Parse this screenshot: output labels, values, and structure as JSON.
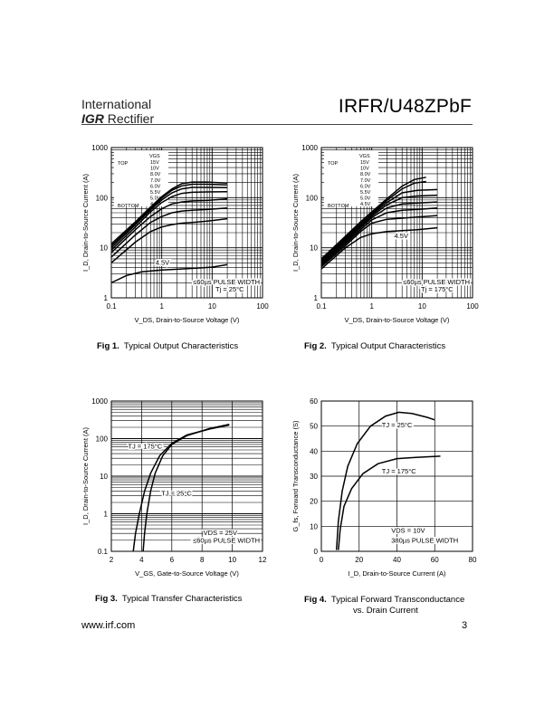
{
  "header": {
    "logo_line1": "International",
    "logo_mark": "IGR",
    "logo_line2": "Rectifier",
    "part_number": "IRFR/U48ZPbF"
  },
  "footer": {
    "website": "www.irf.com",
    "page_number": "3"
  },
  "figures": [
    {
      "id": "fig1",
      "caption_label": "Fig 1.",
      "caption_text": "Typical Output Characteristics",
      "caption_line2": ""
    },
    {
      "id": "fig2",
      "caption_label": "Fig 2.",
      "caption_text": "Typical Output Characteristics",
      "caption_line2": ""
    },
    {
      "id": "fig3",
      "caption_label": "Fig 3.",
      "caption_text": "Typical Transfer Characteristics",
      "caption_line2": ""
    },
    {
      "id": "fig4",
      "caption_label": "Fig 4.",
      "caption_text": "Typical Forward Transconductance",
      "caption_line2": "vs. Drain Current"
    }
  ],
  "chart_data": [
    {
      "type": "line",
      "title": "",
      "xlabel": "V_DS, Drain-to-Source Voltage (V)",
      "ylabel": "I_D, Drain-to-Source Current (A)",
      "xscale": "log",
      "yscale": "log",
      "xlim": [
        0.1,
        100
      ],
      "ylim": [
        1,
        1000
      ],
      "xticks": [
        0.1,
        1,
        10,
        100
      ],
      "xticklabels": [
        "0.1",
        "1",
        "10",
        "100"
      ],
      "yticks": [
        1,
        10,
        100,
        1000
      ],
      "yticklabels": [
        "1",
        "10",
        "100",
        "1000"
      ],
      "legend_box": {
        "vgs_header": "VGS",
        "top_label": "TOP",
        "bottom_label": "BOTTOM",
        "values": [
          "15V",
          "10V",
          "8.0V",
          "7.0V",
          "6.0V",
          "5.5V",
          "5.0V",
          "4.5V"
        ]
      },
      "annotations": [
        "4.5V",
        "≤60µs PULSE WIDTH",
        "Tj = 25°C"
      ],
      "series": [
        {
          "vgs": "15V",
          "points": [
            [
              0.1,
              12
            ],
            [
              0.3,
              33
            ],
            [
              0.6,
              65
            ],
            [
              1,
              105
            ],
            [
              1.6,
              150
            ],
            [
              2.5,
              190
            ],
            [
              4,
              205
            ],
            [
              8,
              205
            ],
            [
              20,
              195
            ]
          ]
        },
        {
          "vgs": "10V",
          "points": [
            [
              0.1,
              11
            ],
            [
              0.3,
              31
            ],
            [
              0.6,
              61
            ],
            [
              1,
              98
            ],
            [
              1.6,
              140
            ],
            [
              2.5,
              172
            ],
            [
              4,
              185
            ],
            [
              8,
              185
            ],
            [
              20,
              180
            ]
          ]
        },
        {
          "vgs": "8.0V",
          "points": [
            [
              0.1,
              10
            ],
            [
              0.3,
              29
            ],
            [
              0.6,
              57
            ],
            [
              1,
              90
            ],
            [
              1.6,
              125
            ],
            [
              2.5,
              150
            ],
            [
              4,
              160
            ],
            [
              8,
              160
            ],
            [
              20,
              158
            ]
          ]
        },
        {
          "vgs": "7.0V",
          "points": [
            [
              0.1,
              9
            ],
            [
              0.3,
              26
            ],
            [
              0.6,
              52
            ],
            [
              1,
              80
            ],
            [
              1.6,
              105
            ],
            [
              2.5,
              122
            ],
            [
              4,
              128
            ],
            [
              8,
              130
            ],
            [
              20,
              132
            ]
          ]
        },
        {
          "vgs": "6.0V",
          "points": [
            [
              0.1,
              8
            ],
            [
              0.3,
              23
            ],
            [
              0.6,
              42
            ],
            [
              1,
              60
            ],
            [
              1.6,
              75
            ],
            [
              2.5,
              82
            ],
            [
              4,
              86
            ],
            [
              8,
              88
            ],
            [
              20,
              95
            ]
          ]
        },
        {
          "vgs": "5.5V",
          "points": [
            [
              0.1,
              6.5
            ],
            [
              0.3,
              18
            ],
            [
              0.6,
              32
            ],
            [
              1,
              42
            ],
            [
              1.6,
              50
            ],
            [
              2.5,
              54
            ],
            [
              4,
              56
            ],
            [
              8,
              58
            ],
            [
              20,
              62
            ]
          ]
        },
        {
          "vgs": "5.0V",
          "points": [
            [
              0.1,
              5
            ],
            [
              0.3,
              13
            ],
            [
              0.6,
              21
            ],
            [
              1,
              26
            ],
            [
              1.6,
              29
            ],
            [
              2.5,
              31
            ],
            [
              4,
              32
            ],
            [
              8,
              34
            ],
            [
              20,
              38
            ]
          ]
        },
        {
          "vgs": "4.5V",
          "points": [
            [
              0.1,
              2
            ],
            [
              0.2,
              2.8
            ],
            [
              0.4,
              3.3
            ],
            [
              1,
              3.6
            ],
            [
              3,
              3.8
            ],
            [
              10,
              4.1
            ],
            [
              20,
              4.6
            ]
          ]
        }
      ]
    },
    {
      "type": "line",
      "title": "",
      "xlabel": "V_DS, Drain-to-Source Voltage (V)",
      "ylabel": "I_D, Drain-to-Source Current (A)",
      "xscale": "log",
      "yscale": "log",
      "xlim": [
        0.1,
        100
      ],
      "ylim": [
        1,
        1000
      ],
      "xticks": [
        0.1,
        1,
        10,
        100
      ],
      "xticklabels": [
        "0.1",
        "1",
        "10",
        "100"
      ],
      "yticks": [
        1,
        10,
        100,
        1000
      ],
      "yticklabels": [
        "1",
        "10",
        "100",
        "1000"
      ],
      "legend_box": {
        "vgs_header": "VGS",
        "top_label": "TOP",
        "bottom_label": "BOTTOM",
        "values": [
          "15V",
          "10V",
          "8.0V",
          "7.0V",
          "6.0V",
          "5.5V",
          "5.0V",
          "4.5V"
        ]
      },
      "annotations": [
        "4.5V",
        "≤60µs PULSE WIDTH",
        "Tj = 175°C"
      ],
      "series": [
        {
          "vgs": "15V",
          "points": [
            [
              0.1,
              6
            ],
            [
              0.3,
              17
            ],
            [
              0.6,
              33
            ],
            [
              1,
              52
            ],
            [
              2,
              95
            ],
            [
              4,
              170
            ],
            [
              7,
              230
            ],
            [
              12,
              255
            ]
          ]
        },
        {
          "vgs": "10V",
          "points": [
            [
              0.1,
              5.7
            ],
            [
              0.3,
              16
            ],
            [
              0.6,
              31
            ],
            [
              1,
              49
            ],
            [
              2,
              88
            ],
            [
              4,
              150
            ],
            [
              7,
              195
            ],
            [
              12,
              210
            ]
          ]
        },
        {
          "vgs": "8.0V",
          "points": [
            [
              0.1,
              5.4
            ],
            [
              0.3,
              15
            ],
            [
              0.6,
              29
            ],
            [
              1,
              46
            ],
            [
              2,
              80
            ],
            [
              4,
              125
            ],
            [
              8,
              140
            ],
            [
              20,
              145
            ]
          ]
        },
        {
          "vgs": "7.0V",
          "points": [
            [
              0.1,
              5.1
            ],
            [
              0.3,
              14
            ],
            [
              0.6,
              27
            ],
            [
              1,
              43
            ],
            [
              2,
              72
            ],
            [
              4,
              100
            ],
            [
              8,
              108
            ],
            [
              20,
              112
            ]
          ]
        },
        {
          "vgs": "6.0V",
          "points": [
            [
              0.1,
              4.8
            ],
            [
              0.3,
              13
            ],
            [
              0.6,
              25
            ],
            [
              1,
              40
            ],
            [
              2,
              62
            ],
            [
              4,
              75
            ],
            [
              8,
              78
            ],
            [
              20,
              82
            ]
          ]
        },
        {
          "vgs": "5.5V",
          "points": [
            [
              0.1,
              4.5
            ],
            [
              0.3,
              12
            ],
            [
              0.6,
              23
            ],
            [
              1,
              36
            ],
            [
              2,
              50
            ],
            [
              4,
              56
            ],
            [
              8,
              58
            ],
            [
              20,
              62
            ]
          ]
        },
        {
          "vgs": "5.0V",
          "points": [
            [
              0.1,
              4.2
            ],
            [
              0.3,
              11
            ],
            [
              0.6,
              21
            ],
            [
              1,
              31
            ],
            [
              2,
              37
            ],
            [
              4,
              39
            ],
            [
              8,
              41
            ],
            [
              20,
              44
            ]
          ]
        },
        {
          "vgs": "4.5V",
          "points": [
            [
              0.1,
              3.8
            ],
            [
              0.3,
              10
            ],
            [
              0.6,
              16
            ],
            [
              1,
              19
            ],
            [
              2,
              21
            ],
            [
              4,
              22
            ],
            [
              8,
              23
            ],
            [
              20,
              25
            ]
          ]
        }
      ]
    },
    {
      "type": "line",
      "title": "",
      "xlabel": "V_GS, Gate-to-Source Voltage (V)",
      "ylabel": "I_D, Drain-to-Source Current (A)",
      "xscale": "linear",
      "yscale": "log",
      "xlim": [
        2,
        12
      ],
      "ylim": [
        0.1,
        1000
      ],
      "xticks": [
        2,
        4,
        6,
        8,
        10,
        12
      ],
      "xticklabels": [
        "2",
        "4",
        "6",
        "8",
        "10",
        "12"
      ],
      "yticks": [
        0.1,
        1,
        10,
        100,
        1000
      ],
      "yticklabels": [
        "0.1",
        "1",
        "10",
        "100",
        "1000"
      ],
      "annotations": [
        "VDS = 25V",
        "≤60µs PULSE WIDTH"
      ],
      "series": [
        {
          "name": "TJ = 175°C",
          "label_at": [
            3.1,
            55
          ],
          "points": [
            [
              3.45,
              0.1
            ],
            [
              3.6,
              0.3
            ],
            [
              3.85,
              1
            ],
            [
              4.2,
              4
            ],
            [
              4.6,
              12
            ],
            [
              5.2,
              35
            ],
            [
              6,
              75
            ],
            [
              7,
              125
            ],
            [
              8.5,
              180
            ],
            [
              9.8,
              230
            ]
          ]
        },
        {
          "name": "TJ = 25°C",
          "label_at": [
            5.3,
            3
          ],
          "points": [
            [
              4.1,
              0.1
            ],
            [
              4.2,
              0.3
            ],
            [
              4.35,
              1
            ],
            [
              4.6,
              4
            ],
            [
              4.9,
              12
            ],
            [
              5.4,
              35
            ],
            [
              6,
              70
            ],
            [
              7,
              120
            ],
            [
              8.5,
              185
            ],
            [
              9.8,
              240
            ]
          ]
        }
      ]
    },
    {
      "type": "line",
      "title": "",
      "xlabel": "I_D, Drain-to-Source Current (A)",
      "ylabel": "G_fs, Forward Transconductance (S)",
      "xscale": "linear",
      "yscale": "linear",
      "xlim": [
        0,
        80
      ],
      "ylim": [
        0,
        60
      ],
      "xticks": [
        0,
        20,
        40,
        60,
        80
      ],
      "xticklabels": [
        "0",
        "20",
        "40",
        "60",
        "80"
      ],
      "yticks": [
        0,
        10,
        20,
        30,
        40,
        50,
        60
      ],
      "yticklabels": [
        "0",
        "10",
        "20",
        "30",
        "40",
        "50",
        "60"
      ],
      "annotations": [
        "VDS = 10V",
        "380µs PULSE WIDTH"
      ],
      "series": [
        {
          "name": "TJ = 25°C",
          "label_at": [
            32,
            49.5
          ],
          "points": [
            [
              8,
              0.5
            ],
            [
              9,
              12
            ],
            [
              11,
              24
            ],
            [
              14,
              34
            ],
            [
              19,
              43
            ],
            [
              26,
              50
            ],
            [
              34,
              54
            ],
            [
              41,
              55.5
            ],
            [
              48,
              55
            ],
            [
              56,
              53.5
            ],
            [
              60,
              52.5
            ]
          ]
        },
        {
          "name": "TJ = 175°C",
          "label_at": [
            32,
            31
          ],
          "points": [
            [
              9,
              0.5
            ],
            [
              10,
              9
            ],
            [
              12,
              18
            ],
            [
              16,
              25
            ],
            [
              22,
              31
            ],
            [
              30,
              35
            ],
            [
              40,
              37
            ],
            [
              50,
              37.5
            ],
            [
              63,
              38
            ]
          ]
        }
      ]
    }
  ]
}
